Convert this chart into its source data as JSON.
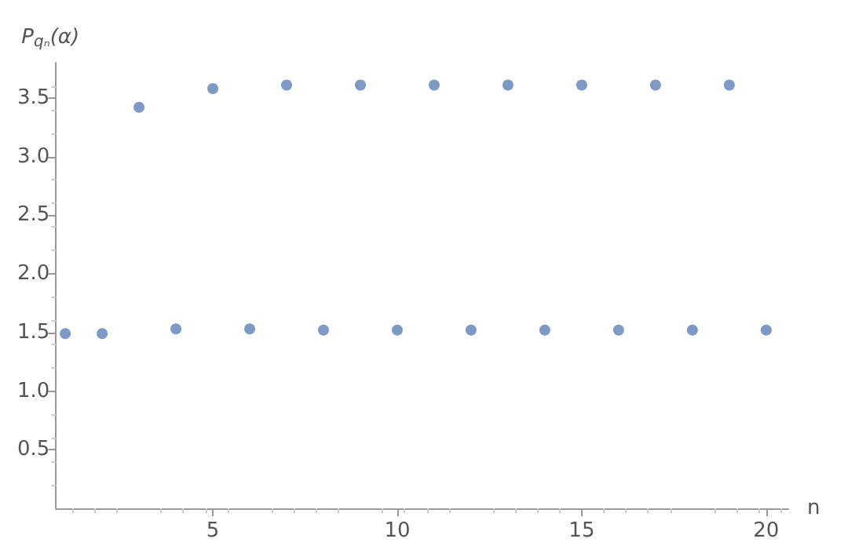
{
  "chart_data": {
    "type": "scatter",
    "xlabel": "n",
    "ylabel": "P$_{qₙ}$(α)",
    "x": [
      1,
      2,
      3,
      4,
      5,
      6,
      7,
      8,
      9,
      10,
      11,
      12,
      13,
      14,
      15,
      16,
      17,
      18,
      19,
      20
    ],
    "values": [
      1.49,
      1.49,
      3.42,
      1.53,
      3.58,
      1.53,
      3.61,
      1.52,
      3.61,
      1.52,
      3.61,
      1.52,
      3.61,
      1.52,
      3.61,
      1.52,
      3.61,
      1.52,
      3.61,
      1.52
    ],
    "color": "#5e81b5",
    "marker": "circle",
    "xlim": [
      0.75,
      20.6
    ],
    "xticks": [
      5,
      10,
      15,
      20
    ],
    "ylim": [
      0,
      3.8
    ],
    "yticks": [
      0.5,
      {
        "value": 1,
        "label": "1.0"
      },
      1.5,
      {
        "value": 2,
        "label": "2.0"
      },
      2.5,
      {
        "value": 3,
        "label": "3.0"
      },
      3.5
    ],
    "grid": false
  }
}
